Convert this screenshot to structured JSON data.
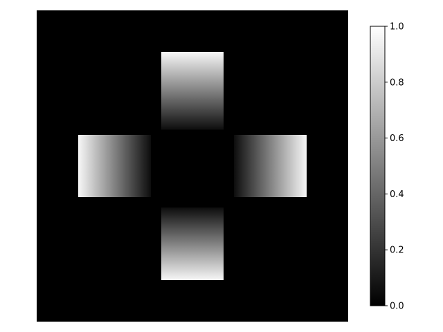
{
  "chart_data": {
    "type": "heatmap",
    "title": "",
    "xlabel": "",
    "ylabel": "",
    "colormap": "gray",
    "vmin": 0,
    "vmax": 1,
    "axes_visible": false,
    "grid": false,
    "image": {
      "shape": "cross of four gradient squares on a black background",
      "extent": {
        "x": [
          0,
          60
        ],
        "y": [
          0,
          60
        ]
      },
      "background_value": 0,
      "patches": [
        {
          "name": "top",
          "x": [
            24,
            36
          ],
          "y": [
            8,
            23
          ],
          "gradient": "vertical",
          "bright_side": "top",
          "value_range": [
            0.05,
            0.97
          ]
        },
        {
          "name": "left",
          "x": [
            8,
            22
          ],
          "y": [
            24,
            36
          ],
          "gradient": "horizontal",
          "bright_side": "left",
          "value_range": [
            0.05,
            0.97
          ]
        },
        {
          "name": "right",
          "x": [
            38,
            52
          ],
          "y": [
            24,
            36
          ],
          "gradient": "horizontal",
          "bright_side": "right",
          "value_range": [
            0.05,
            0.97
          ]
        },
        {
          "name": "bottom",
          "x": [
            24,
            36
          ],
          "y": [
            38,
            52
          ],
          "gradient": "vertical",
          "bright_side": "bottom",
          "value_range": [
            0.05,
            0.97
          ]
        }
      ]
    },
    "colorbar": {
      "ticks": [
        0.0,
        0.2,
        0.4,
        0.6,
        0.8,
        1.0
      ],
      "tick_labels": [
        "0.0",
        "0.2",
        "0.4",
        "0.6",
        "0.8",
        "1.0"
      ]
    }
  }
}
